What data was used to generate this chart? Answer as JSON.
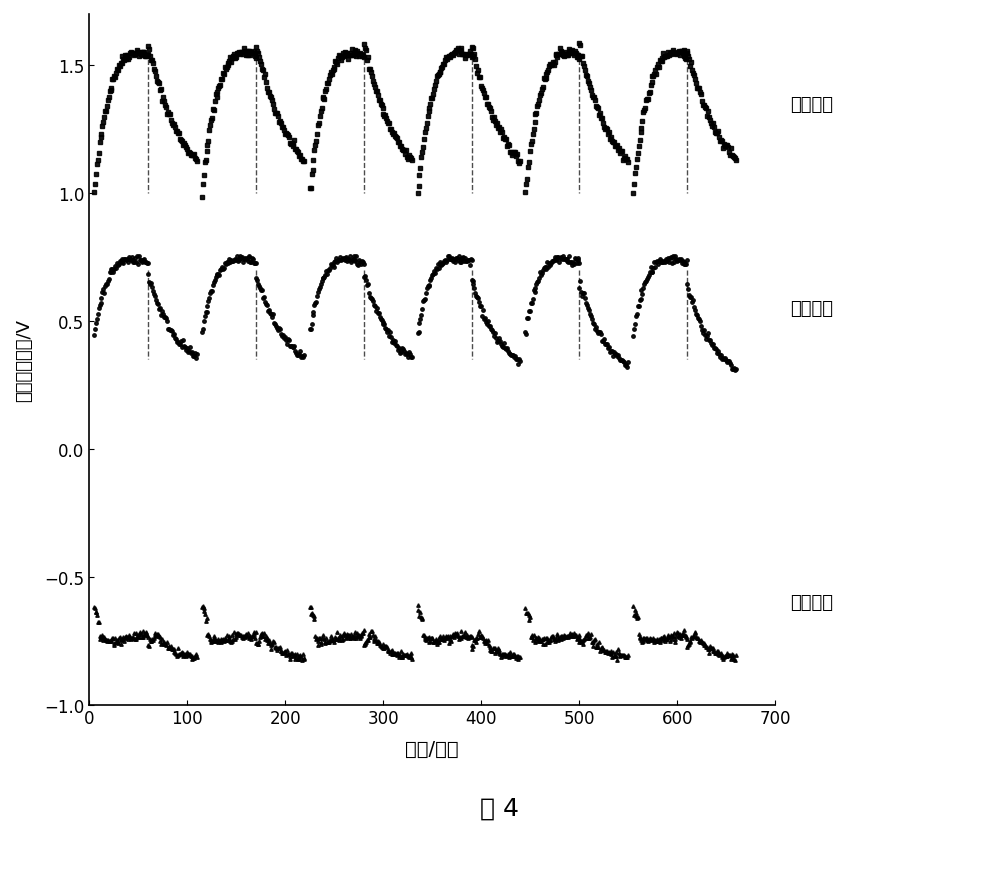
{
  "title": "图 4",
  "xlabel": "时间/分钟",
  "ylabel": "电压（电位）/V",
  "xlim": [
    0,
    700
  ],
  "ylim": [
    -1.0,
    1.7
  ],
  "yticks": [
    -1.0,
    -0.5,
    0.0,
    0.5,
    1.0,
    1.5
  ],
  "xticks": [
    0,
    100,
    200,
    300,
    400,
    500,
    600,
    700
  ],
  "legend_labels": [
    "电池电压",
    "正极电位",
    "负极电位"
  ],
  "background": "#ffffff",
  "line_color": "#1a1a1a",
  "num_cycles": 6,
  "cycle_period": 110,
  "charge_duration": 55,
  "discharge_duration": 55
}
